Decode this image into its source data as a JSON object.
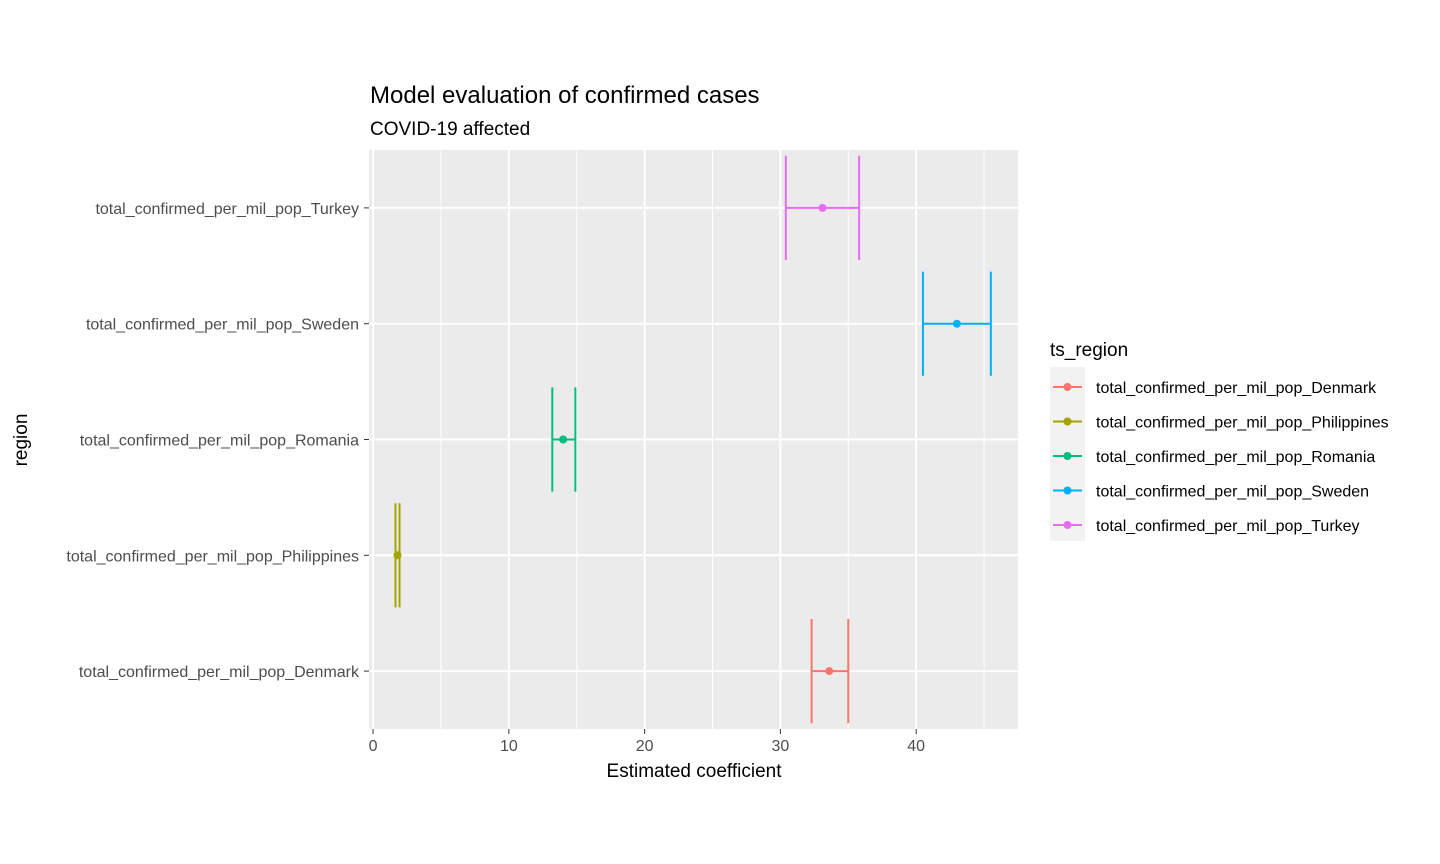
{
  "chart_data": {
    "type": "errorbar",
    "title": "Model evaluation of confirmed cases",
    "subtitle": "COVID-19 affected",
    "xlabel": "Estimated coefficient",
    "ylabel": "region",
    "xlim": [
      -0.3,
      47.5
    ],
    "xticks": [
      0,
      10,
      20,
      30,
      40
    ],
    "grid": true,
    "legend": {
      "title": "ts_region",
      "position": "right",
      "entries": [
        "total_confirmed_per_mil_pop_Denmark",
        "total_confirmed_per_mil_pop_Philippines",
        "total_confirmed_per_mil_pop_Romania",
        "total_confirmed_per_mil_pop_Sweden",
        "total_confirmed_per_mil_pop_Turkey"
      ]
    },
    "categories": [
      "total_confirmed_per_mil_pop_Denmark",
      "total_confirmed_per_mil_pop_Philippines",
      "total_confirmed_per_mil_pop_Romania",
      "total_confirmed_per_mil_pop_Sweden",
      "total_confirmed_per_mil_pop_Turkey"
    ],
    "series": [
      {
        "name": "total_confirmed_per_mil_pop_Denmark",
        "estimate": 33.6,
        "low": 32.3,
        "high": 35.0,
        "color": "#F8766D"
      },
      {
        "name": "total_confirmed_per_mil_pop_Philippines",
        "estimate": 1.8,
        "low": 1.65,
        "high": 1.95,
        "color": "#A3A500"
      },
      {
        "name": "total_confirmed_per_mil_pop_Romania",
        "estimate": 14.0,
        "low": 13.2,
        "high": 14.9,
        "color": "#00BF7D"
      },
      {
        "name": "total_confirmed_per_mil_pop_Sweden",
        "estimate": 43.0,
        "low": 40.5,
        "high": 45.5,
        "color": "#00B0F6"
      },
      {
        "name": "total_confirmed_per_mil_pop_Turkey",
        "estimate": 33.1,
        "low": 30.4,
        "high": 35.8,
        "color": "#E76BF3"
      }
    ]
  }
}
